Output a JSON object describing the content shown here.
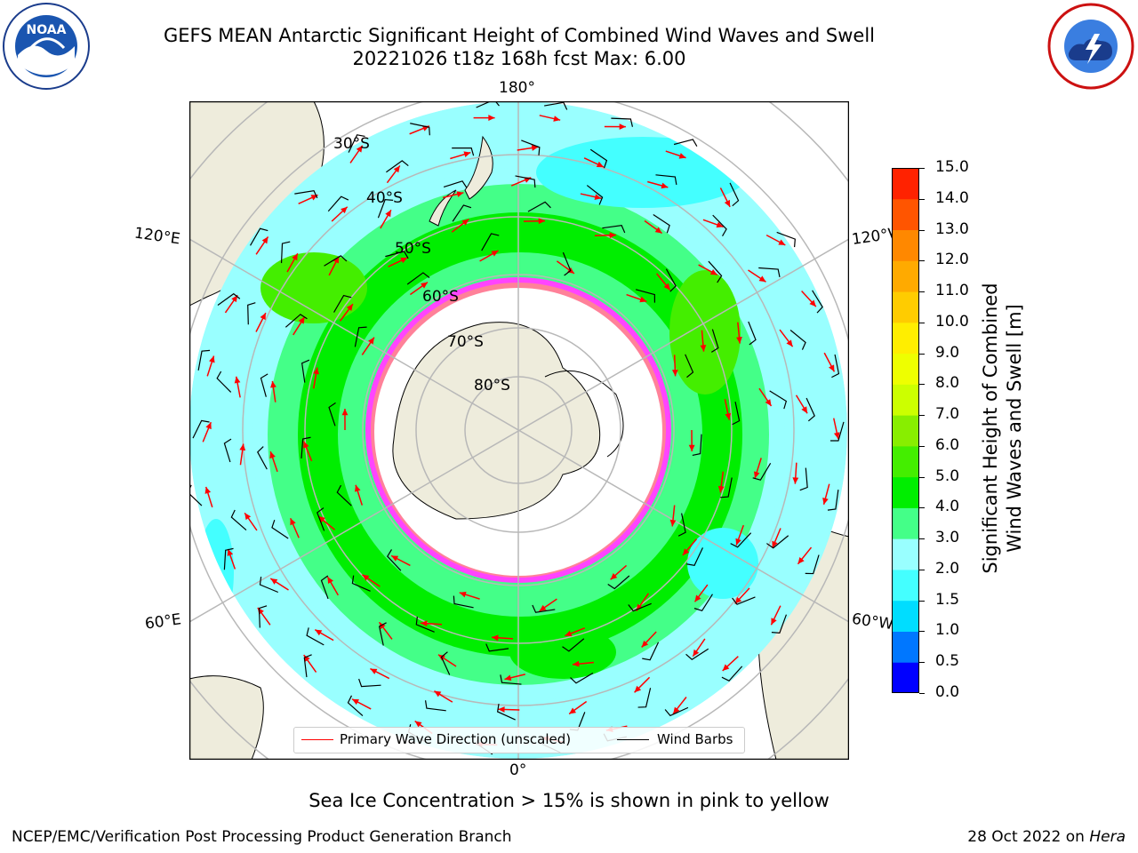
{
  "header": {
    "title_line1": "GEFS MEAN Antarctic Significant Height of Combined Wind Waves and Swell",
    "title_line2": "20221026 t18z 168h fcst   Max: 6.00"
  },
  "logos": {
    "left": {
      "text": "NOAA",
      "ring_text": "NATIONAL OCEANIC AND ATMOSPHERIC ADMINISTRATION · U.S. DEPARTMENT OF COMMERCE"
    },
    "right": {
      "ring_text": "NATIONAL WEATHER SERVICE"
    }
  },
  "map": {
    "projection": "south-polar-stereographic",
    "longitude_labels": {
      "top": "180°",
      "bottom": "0°",
      "upper_left": "120°E",
      "upper_right": "120°W",
      "lower_left": "60°E",
      "lower_right": "60°W"
    },
    "latitude_labels": [
      "30°S",
      "40°S",
      "50°S",
      "60°S",
      "70°S",
      "80°S"
    ],
    "colors": {
      "land": "#eeecdc",
      "ice_free_bg": "#ffffff",
      "gridline": "#b8b8b8",
      "wave_arrow": "#ff0000",
      "wind_barb": "#000000",
      "sea_ice": "#ff44ff"
    }
  },
  "colorbar": {
    "label_line1": "Significant Height of Combined",
    "label_line2": "Wind Waves and Swell [m]",
    "ticks": [
      "0.0",
      "0.5",
      "1.0",
      "1.5",
      "2.0",
      "3.0",
      "4.0",
      "5.0",
      "6.0",
      "7.0",
      "8.0",
      "9.0",
      "10.0",
      "11.0",
      "12.0",
      "13.0",
      "14.0",
      "15.0"
    ],
    "colors": [
      "#0000ff",
      "#0077ff",
      "#00ddff",
      "#44ffff",
      "#99ffff",
      "#44ff88",
      "#00ee00",
      "#44ee00",
      "#88ee00",
      "#ccff00",
      "#eeff00",
      "#ffee00",
      "#ffcc00",
      "#ffaa00",
      "#ff8800",
      "#ff5500",
      "#ff2200"
    ]
  },
  "legend": {
    "wave_label": "Primary Wave Direction (unscaled)",
    "wind_label": "Wind Barbs"
  },
  "notes": {
    "sea_ice": "Sea Ice Concentration > 15% is shown in pink to yellow",
    "credit": "NCEP/EMC/Verification Post Processing Product Generation Branch",
    "date_prefix": "28 Oct 2022 on ",
    "date_machine": "Hera"
  }
}
